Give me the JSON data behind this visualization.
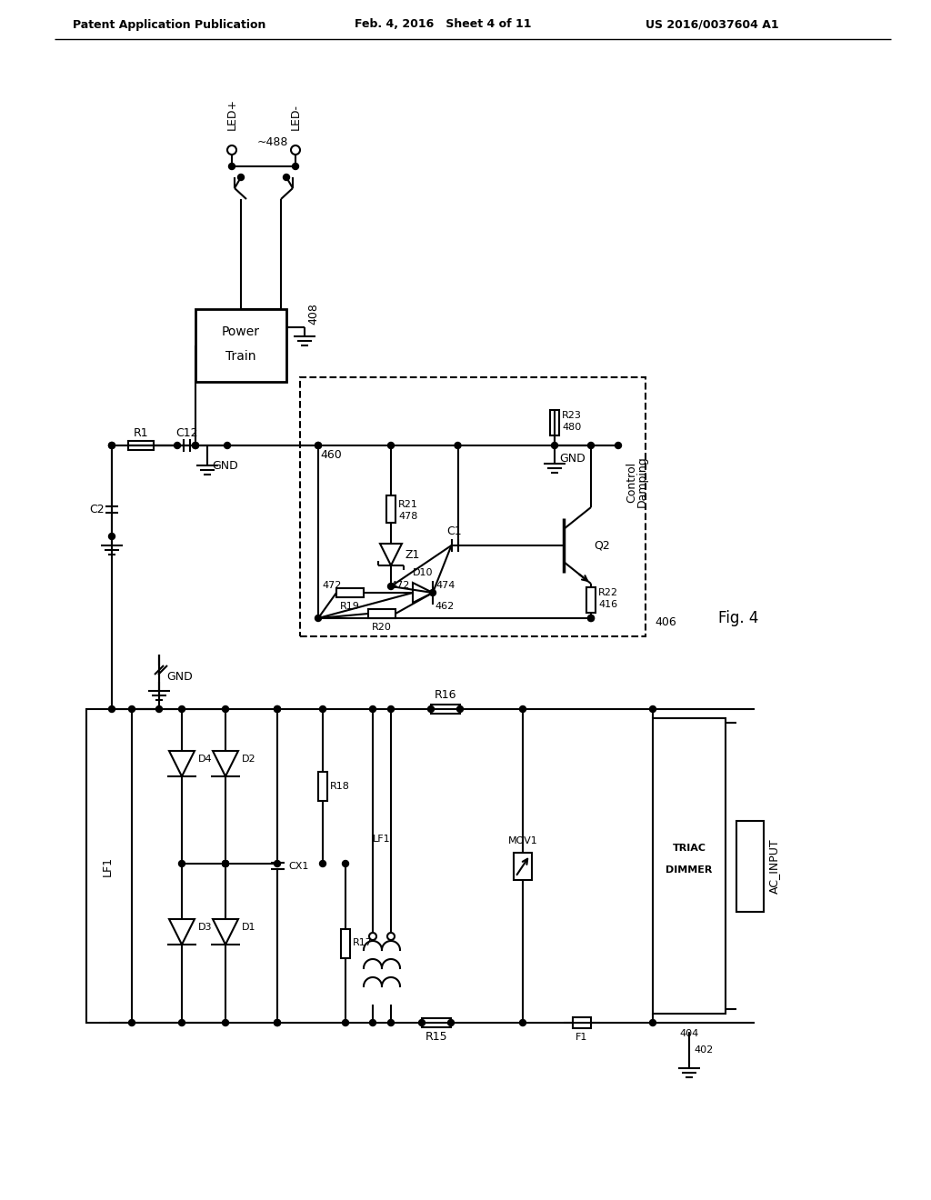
{
  "title_left": "Patent Application Publication",
  "title_mid": "Feb. 4, 2016   Sheet 4 of 11",
  "title_right": "US 2016/0037604 A1",
  "fig_label": "Fig. 4",
  "background_color": "#ffffff",
  "line_color": "#000000",
  "text_color": "#000000"
}
